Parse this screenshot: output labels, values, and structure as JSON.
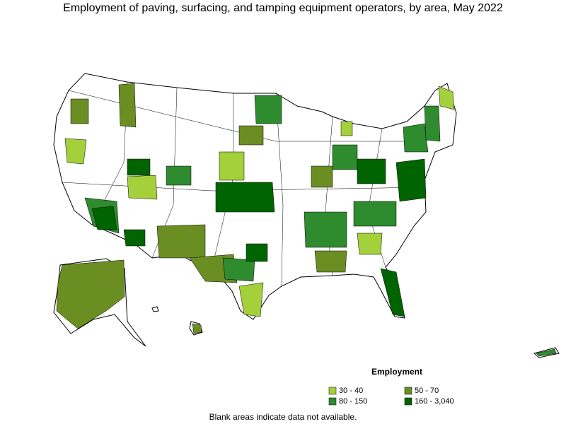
{
  "title": "Employment of paving, surfacing, and tamping equipment operators, by area, May 2022",
  "legend": {
    "title": "Employment",
    "items": [
      {
        "label": "30 - 40",
        "color": "#a4d03c"
      },
      {
        "label": "50 - 70",
        "color": "#6b8e23"
      },
      {
        "label": "80 - 150",
        "color": "#2e8b2e"
      },
      {
        "label": "160 - 3,040",
        "color": "#006400"
      }
    ]
  },
  "footnote": "Blank areas indicate data not available."
}
